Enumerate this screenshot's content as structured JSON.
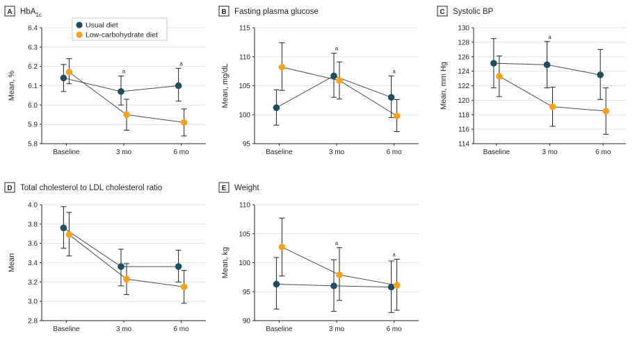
{
  "legend": {
    "series": [
      {
        "name": "Usual diet",
        "color": "#1e4e5f"
      },
      {
        "name": "Low-carbohydrate diet",
        "color": "#f5a21c"
      }
    ]
  },
  "chart_data": [
    {
      "type": "line",
      "letter": "A",
      "title": "HbA",
      "title_sub": "1c",
      "xlabel": "",
      "ylabel": "Mean, %",
      "categories": [
        "Baseline",
        "3 mo",
        "6 mo"
      ],
      "ylim": [
        5.8,
        6.4
      ],
      "yticks": [
        "6.4",
        "6.3",
        "6.2",
        "6.1",
        "6.0",
        "5.9",
        "5.8"
      ],
      "sig_marker": "a",
      "sig_at": [
        1,
        2
      ],
      "series": [
        {
          "name": "Usual diet",
          "values": [
            6.14,
            6.07,
            6.1
          ],
          "err_low": [
            6.07,
            6.0,
            6.02
          ],
          "err_high": [
            6.21,
            6.15,
            6.19
          ]
        },
        {
          "name": "Low-carbohydrate diet",
          "values": [
            6.17,
            5.95,
            5.91
          ],
          "err_low": [
            6.11,
            5.87,
            5.84
          ],
          "err_high": [
            6.24,
            6.03,
            5.98
          ]
        }
      ]
    },
    {
      "type": "line",
      "letter": "B",
      "title": "Fasting plasma glucose",
      "title_sub": "",
      "xlabel": "",
      "ylabel": "Mean, mg/dL",
      "categories": [
        "Baseline",
        "3 mo",
        "6 mo"
      ],
      "ylim": [
        95,
        115
      ],
      "yticks": [
        "115",
        "110",
        "105",
        "100",
        "95"
      ],
      "sig_marker": "a",
      "sig_at": [
        1,
        2
      ],
      "series": [
        {
          "name": "Usual diet",
          "values": [
            101.2,
            106.7,
            103.0
          ],
          "err_low": [
            98.2,
            103.0,
            99.5
          ],
          "err_high": [
            104.3,
            110.6,
            106.7
          ]
        },
        {
          "name": "Low-carbohydrate diet",
          "values": [
            108.2,
            105.9,
            99.8
          ],
          "err_low": [
            104.2,
            102.7,
            97.1
          ],
          "err_high": [
            112.4,
            109.1,
            102.6
          ]
        }
      ]
    },
    {
      "type": "line",
      "letter": "C",
      "title": "Systolic BP",
      "title_sub": "",
      "xlabel": "",
      "ylabel": "Mean, mm Hg",
      "categories": [
        "Baseline",
        "3 mo",
        "6 mo"
      ],
      "ylim": [
        114,
        130
      ],
      "yticks": [
        "130",
        "128",
        "126",
        "124",
        "122",
        "120",
        "118",
        "116",
        "114"
      ],
      "sig_marker": "a",
      "sig_at": [
        1
      ],
      "series": [
        {
          "name": "Usual diet",
          "values": [
            125.1,
            124.9,
            123.5
          ],
          "err_low": [
            121.7,
            121.7,
            120.1
          ],
          "err_high": [
            128.5,
            128.1,
            127.0
          ]
        },
        {
          "name": "Low-carbohydrate diet",
          "values": [
            123.3,
            119.1,
            118.5
          ],
          "err_low": [
            120.5,
            116.4,
            115.3
          ],
          "err_high": [
            126.1,
            121.8,
            121.7
          ]
        }
      ]
    },
    {
      "type": "line",
      "letter": "D",
      "title": "Total cholesterol to LDL cholesterol ratio",
      "title_sub": "",
      "xlabel": "",
      "ylabel": "Mean",
      "categories": [
        "Baseline",
        "3 mo",
        "6 mo"
      ],
      "ylim": [
        2.8,
        4.0
      ],
      "yticks": [
        "4.0",
        "3.8",
        "3.6",
        "3.4",
        "3.2",
        "3.0",
        "2.8"
      ],
      "sig_marker": "",
      "sig_at": [],
      "series": [
        {
          "name": "Usual diet",
          "values": [
            3.76,
            3.36,
            3.36
          ],
          "err_low": [
            3.55,
            3.16,
            3.2
          ],
          "err_high": [
            3.98,
            3.54,
            3.53
          ]
        },
        {
          "name": "Low-carbohydrate diet",
          "values": [
            3.69,
            3.23,
            3.15
          ],
          "err_low": [
            3.47,
            3.07,
            2.98
          ],
          "err_high": [
            3.92,
            3.39,
            3.32
          ]
        }
      ]
    },
    {
      "type": "line",
      "letter": "E",
      "title": "Weight",
      "title_sub": "",
      "xlabel": "",
      "ylabel": "Mean, kg",
      "categories": [
        "Baseline",
        "3 mo",
        "6 mo"
      ],
      "ylim": [
        90,
        110
      ],
      "yticks": [
        "110",
        "105",
        "100",
        "95",
        "90"
      ],
      "sig_marker": "a",
      "sig_at": [
        1,
        2
      ],
      "series": [
        {
          "name": "Usual diet",
          "values": [
            96.3,
            96.0,
            95.8
          ],
          "err_low": [
            92.0,
            91.6,
            91.4
          ],
          "err_high": [
            100.9,
            100.5,
            100.3
          ]
        },
        {
          "name": "Low-carbohydrate diet",
          "values": [
            102.7,
            97.9,
            96.1
          ],
          "err_low": [
            97.7,
            93.5,
            91.8
          ],
          "err_high": [
            107.7,
            102.6,
            100.6
          ]
        }
      ]
    }
  ]
}
